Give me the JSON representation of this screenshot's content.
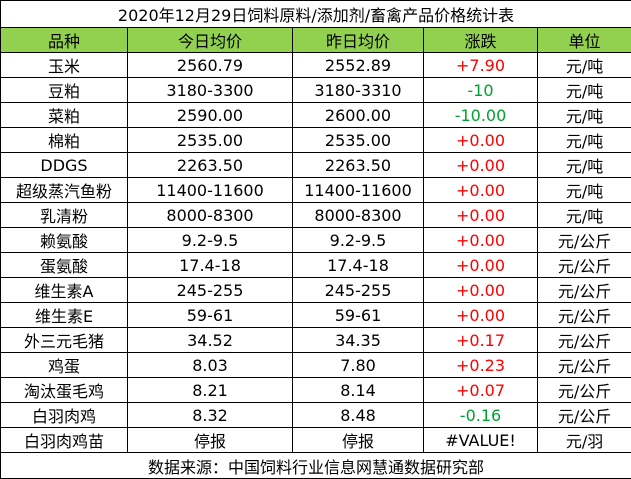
{
  "table": {
    "title": "2020年12月29日饲料原料/添加剂/畜禽产品价格统计表",
    "header": [
      "品种",
      "今日均价",
      "昨日均价",
      "涨跌",
      "单位"
    ],
    "rows": [
      [
        "玉米",
        "2560.79",
        "2552.89",
        "+7.90",
        "元/吨"
      ],
      [
        "豆粕",
        "3180-3300",
        "3180-3310",
        "-10",
        "元/吨"
      ],
      [
        "菜粕",
        "2590.00",
        "2600.00",
        "-10.00",
        "元/吨"
      ],
      [
        "棉粕",
        "2535.00",
        "2535.00",
        "+0.00",
        "元/吨"
      ],
      [
        "DDGS",
        "2263.50",
        "2263.50",
        "+0.00",
        "元/吨"
      ],
      [
        "超级蒸汽鱼粉",
        "11400-11600",
        "11400-11600",
        "+0.00",
        "元/吨"
      ],
      [
        "乳清粉",
        "8000-8300",
        "8000-8300",
        "+0.00",
        "元/吨"
      ],
      [
        "赖氨酸",
        "9.2-9.5",
        "9.2-9.5",
        "+0.00",
        "元/公斤"
      ],
      [
        "蛋氨酸",
        "17.4-18",
        "17.4-18",
        "+0.00",
        "元/公斤"
      ],
      [
        "维生素A",
        "245-255",
        "245-255",
        "+0.00",
        "元/公斤"
      ],
      [
        "维生素E",
        "59-61",
        "59-61",
        "+0.00",
        "元/公斤"
      ],
      [
        "外三元毛猪",
        "34.52",
        "34.35",
        "+0.17",
        "元/公斤"
      ],
      [
        "鸡蛋",
        "8.03",
        "7.80",
        "+0.23",
        "元/公斤"
      ],
      [
        "淘汰蛋毛鸡",
        "8.21",
        "8.14",
        "+0.07",
        "元/公斤"
      ],
      [
        "白羽肉鸡",
        "8.32",
        "8.48",
        "-0.16",
        "元/公斤"
      ],
      [
        "白羽肉鸡苗",
        "停报",
        "停报",
        "#VALUE!",
        "元/羽"
      ]
    ],
    "footer": "数据来源：中国饲料行业信息网慧通数据研究部"
  }
}
